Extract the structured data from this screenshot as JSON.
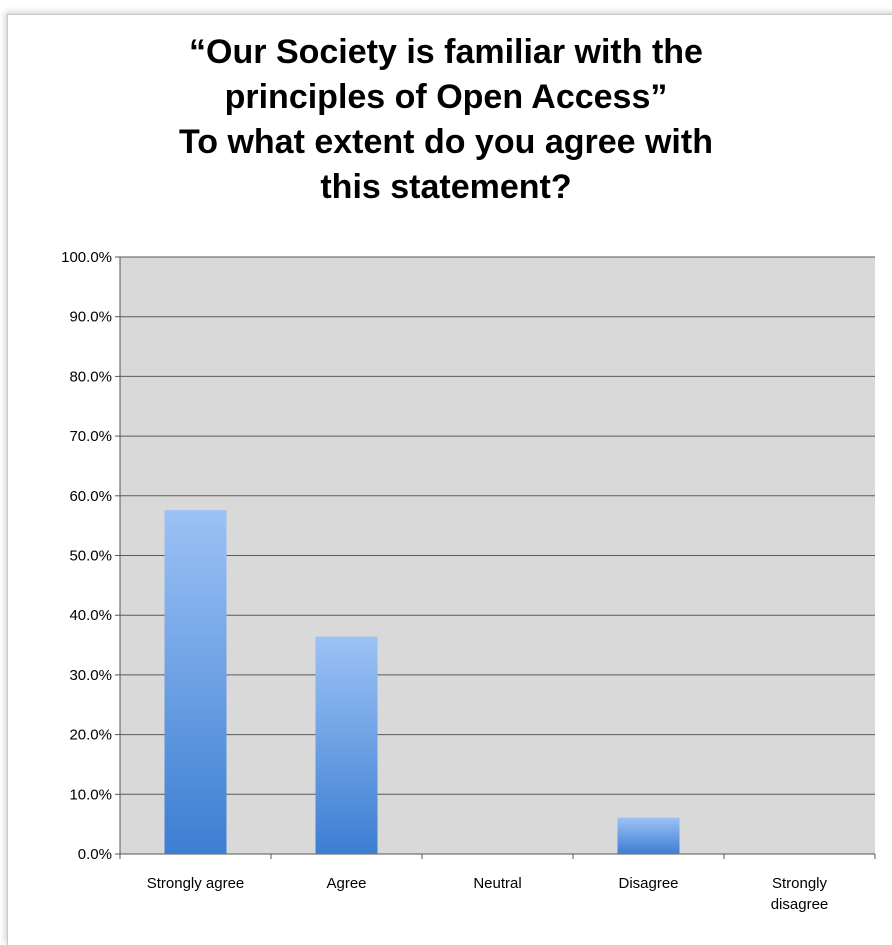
{
  "chart_data": {
    "type": "bar",
    "title_lines": [
      "“Our Society is familiar with the",
      "principles of Open Access”",
      "To what extent do you agree with",
      "this statement?"
    ],
    "categories": [
      "Strongly agree",
      "Agree",
      "Neutral",
      "Disagree",
      "Strongly disagree"
    ],
    "category_label_lines": [
      [
        "Strongly agree"
      ],
      [
        "Agree"
      ],
      [
        "Neutral"
      ],
      [
        "Disagree"
      ],
      [
        "Strongly",
        "disagree"
      ]
    ],
    "values": [
      57.6,
      36.4,
      0,
      6.1,
      0
    ],
    "ylim": [
      0,
      100
    ],
    "y_ticks": [
      0,
      10,
      20,
      30,
      40,
      50,
      60,
      70,
      80,
      90,
      100
    ],
    "y_tick_labels": [
      "0.0%",
      "10.0%",
      "20.0%",
      "30.0%",
      "40.0%",
      "50.0%",
      "60.0%",
      "70.0%",
      "80.0%",
      "90.0%",
      "100.0%"
    ],
    "xlabel": "",
    "ylabel": "",
    "grid": true,
    "legend": "none",
    "colors": {
      "plot_background": "#d9d9d9",
      "gridline": "#5a5a5a",
      "bar_top": "#9cc2f5",
      "bar_bottom": "#3c7ed2"
    }
  }
}
